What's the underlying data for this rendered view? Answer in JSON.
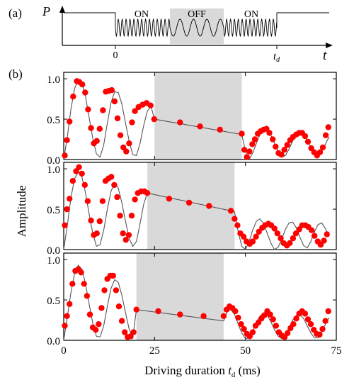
{
  "panel_a": {
    "label": "(a)",
    "y_symbol": "P",
    "x_symbol": "t",
    "on_label_1": "ON",
    "off_label": "OFF",
    "on_label_2": "ON",
    "tick_zero": "0",
    "tick_td": "t",
    "tick_td_sub": "d",
    "shade_color": "#d9d9d9"
  },
  "panel_b": {
    "label": "(b)",
    "ylabel": "Amplitude",
    "xlabel_main": "Driving duration ",
    "xlabel_var": "t",
    "xlabel_sub": "d",
    "xlabel_unit": " (ms)",
    "xticks": [
      "0",
      "25",
      "50",
      "75"
    ],
    "yticks": [
      "0.0",
      "0.5",
      "1.0"
    ],
    "marker_color": "#ff0000",
    "fit_color": "#555555",
    "shade_color": "#d9d9d9"
  },
  "chart_data": [
    {
      "type": "scatter",
      "subplot": 1,
      "xlim": [
        0,
        75
      ],
      "ylim": [
        0,
        1.08
      ],
      "off_interval": [
        25,
        49
      ],
      "x": [
        0.3,
        0.9,
        1.6,
        2.6,
        3.6,
        4.3,
        5.1,
        5.9,
        6.7,
        7.5,
        8.3,
        9.1,
        9.9,
        10.8,
        11.6,
        12.4,
        13.2,
        14.0,
        14.8,
        15.6,
        16.4,
        17.2,
        18.0,
        18.8,
        19.6,
        20.6,
        21.7,
        22.8,
        23.9,
        24.9,
        32.0,
        37.5,
        43.0,
        49.0,
        49.7,
        50.4,
        51.1,
        51.9,
        52.6,
        53.4,
        54.2,
        55.0,
        55.8,
        56.6,
        57.5,
        58.3,
        59.1,
        59.9,
        60.7,
        61.5,
        62.3,
        63.1,
        64.0,
        64.8,
        65.6,
        66.4,
        67.2,
        68.1,
        68.9,
        69.7,
        70.5,
        71.3,
        72.1,
        72.8
      ],
      "y": [
        0.05,
        0.24,
        0.47,
        0.78,
        0.97,
        0.96,
        0.93,
        0.83,
        0.62,
        0.39,
        0.2,
        0.23,
        0.38,
        0.61,
        0.84,
        0.85,
        0.86,
        0.72,
        0.51,
        0.3,
        0.15,
        0.1,
        0.2,
        0.46,
        0.6,
        0.65,
        0.68,
        0.7,
        0.67,
        0.5,
        0.46,
        0.41,
        0.37,
        0.32,
        0.12,
        0.03,
        0.1,
        0.19,
        0.25,
        0.32,
        0.35,
        0.37,
        0.38,
        0.33,
        0.25,
        0.16,
        0.08,
        0.06,
        0.12,
        0.18,
        0.24,
        0.28,
        0.31,
        0.33,
        0.33,
        0.29,
        0.22,
        0.14,
        0.09,
        0.05,
        0.09,
        0.15,
        0.3,
        0.4
      ],
      "fit_x": [
        0,
        1,
        2,
        3,
        4,
        5,
        6,
        7,
        8,
        9,
        10,
        11,
        12,
        13,
        14,
        15,
        16,
        17,
        18,
        19,
        20,
        21,
        22,
        23,
        24,
        25,
        49,
        50,
        51,
        52,
        53,
        54,
        55,
        56,
        57,
        58,
        59,
        60,
        61,
        62,
        63,
        64,
        65,
        66,
        67,
        68,
        69,
        70,
        71,
        72,
        73
      ],
      "fit_y": [
        0.0,
        0.28,
        0.63,
        0.88,
        0.99,
        0.95,
        0.78,
        0.52,
        0.26,
        0.07,
        0.03,
        0.18,
        0.45,
        0.7,
        0.84,
        0.83,
        0.69,
        0.45,
        0.23,
        0.06,
        0.05,
        0.2,
        0.42,
        0.6,
        0.66,
        0.5,
        0.31,
        0.1,
        0.0,
        0.08,
        0.2,
        0.31,
        0.37,
        0.36,
        0.3,
        0.2,
        0.1,
        0.03,
        0.05,
        0.13,
        0.23,
        0.31,
        0.34,
        0.32,
        0.25,
        0.15,
        0.07,
        0.03,
        0.09,
        0.19,
        0.28
      ]
    },
    {
      "type": "scatter",
      "subplot": 2,
      "xlim": [
        0,
        75
      ],
      "ylim": [
        0,
        1.08
      ],
      "off_interval": [
        23,
        47
      ],
      "x": [
        0.3,
        0.9,
        1.6,
        2.5,
        3.4,
        4.2,
        5.0,
        5.8,
        6.6,
        7.5,
        8.3,
        9.1,
        9.9,
        10.7,
        11.5,
        12.3,
        13.1,
        13.9,
        14.7,
        15.5,
        16.3,
        17.1,
        17.9,
        18.7,
        19.6,
        20.4,
        21.3,
        22.2,
        23.0,
        29.0,
        34.5,
        40.0,
        46.0,
        47.0,
        47.8,
        48.6,
        49.5,
        50.3,
        51.2,
        52.0,
        52.9,
        53.7,
        54.6,
        55.4,
        56.3,
        57.1,
        58.0,
        58.8,
        59.7,
        60.5,
        61.4,
        62.2,
        63.1,
        63.9,
        64.8,
        65.6,
        66.5,
        67.3,
        68.2,
        69.0,
        69.9,
        70.7,
        71.6,
        72.4
      ],
      "y": [
        0.3,
        0.5,
        0.63,
        0.85,
        0.97,
        1.02,
        0.94,
        0.8,
        0.6,
        0.36,
        0.18,
        0.2,
        0.35,
        0.6,
        0.85,
        0.88,
        0.9,
        0.8,
        0.65,
        0.42,
        0.2,
        0.12,
        0.18,
        0.42,
        0.62,
        0.7,
        0.72,
        0.72,
        0.7,
        0.63,
        0.58,
        0.54,
        0.48,
        0.38,
        0.3,
        0.2,
        0.16,
        0.1,
        0.07,
        0.1,
        0.16,
        0.22,
        0.27,
        0.3,
        0.32,
        0.3,
        0.26,
        0.2,
        0.14,
        0.08,
        0.05,
        0.08,
        0.14,
        0.2,
        0.25,
        0.3,
        0.3,
        0.28,
        0.24,
        0.17,
        0.1,
        0.06,
        0.11,
        0.19
      ],
      "fit_x": [
        0,
        1,
        2,
        3,
        4,
        5,
        6,
        7,
        8,
        9,
        10,
        11,
        12,
        13,
        14,
        15,
        16,
        17,
        18,
        19,
        20,
        21,
        22,
        23,
        47,
        48,
        49,
        50,
        51,
        52,
        53,
        54,
        55,
        56,
        57,
        58,
        59,
        60,
        61,
        62,
        63,
        64,
        65,
        66,
        67,
        68,
        69,
        70,
        71,
        72,
        73
      ],
      "fit_y": [
        0.0,
        0.3,
        0.65,
        0.88,
        0.96,
        0.9,
        0.7,
        0.44,
        0.2,
        0.04,
        0.06,
        0.24,
        0.5,
        0.72,
        0.82,
        0.76,
        0.58,
        0.35,
        0.14,
        0.04,
        0.1,
        0.32,
        0.56,
        0.7,
        0.47,
        0.22,
        0.04,
        0.0,
        0.1,
        0.24,
        0.35,
        0.38,
        0.32,
        0.2,
        0.08,
        0.0,
        0.03,
        0.13,
        0.25,
        0.33,
        0.34,
        0.27,
        0.15,
        0.05,
        0.02,
        0.1,
        0.22,
        0.31,
        0.33,
        0.26,
        0.16
      ]
    },
    {
      "type": "scatter",
      "subplot": 3,
      "xlim": [
        0,
        75
      ],
      "ylim": [
        0,
        1.08
      ],
      "off_interval": [
        20,
        44
      ],
      "x": [
        0.3,
        0.9,
        1.6,
        2.4,
        3.2,
        4.0,
        4.8,
        5.6,
        6.4,
        7.2,
        8.0,
        8.8,
        9.6,
        10.4,
        11.2,
        12.0,
        12.8,
        13.6,
        14.4,
        15.2,
        16.0,
        16.8,
        17.6,
        18.4,
        19.2,
        20.0,
        26.0,
        32.0,
        38.5,
        44.0,
        44.8,
        45.6,
        46.4,
        47.2,
        48.0,
        48.8,
        49.6,
        50.4,
        51.2,
        52.0,
        52.8,
        53.6,
        54.4,
        55.2,
        56.0,
        56.8,
        57.6,
        58.4,
        59.2,
        60.0,
        60.8,
        61.6,
        62.4,
        63.2,
        64.0,
        64.8,
        65.6,
        66.4,
        67.2,
        68.0,
        68.8,
        69.6,
        70.4,
        71.2,
        72.0,
        72.8
      ],
      "y": [
        0.18,
        0.3,
        0.45,
        0.7,
        0.86,
        0.88,
        0.84,
        0.7,
        0.55,
        0.32,
        0.16,
        0.13,
        0.2,
        0.4,
        0.62,
        0.76,
        0.8,
        0.8,
        0.62,
        0.42,
        0.24,
        0.1,
        0.04,
        0.05,
        0.1,
        0.38,
        0.36,
        0.32,
        0.3,
        0.3,
        0.38,
        0.42,
        0.4,
        0.36,
        0.28,
        0.2,
        0.14,
        0.08,
        0.05,
        0.1,
        0.18,
        0.22,
        0.27,
        0.31,
        0.36,
        0.32,
        0.26,
        0.18,
        0.1,
        0.06,
        0.04,
        0.09,
        0.15,
        0.2,
        0.27,
        0.33,
        0.36,
        0.33,
        0.26,
        0.2,
        0.13,
        0.08,
        0.07,
        0.14,
        0.24,
        0.36
      ],
      "fit_x": [
        0,
        1,
        2,
        3,
        4,
        5,
        6,
        7,
        8,
        9,
        10,
        11,
        12,
        13,
        14,
        15,
        16,
        17,
        18,
        19,
        20,
        44,
        45,
        46,
        47,
        48,
        49,
        50,
        51,
        52,
        53,
        54,
        55,
        56,
        57,
        58,
        59,
        60,
        61,
        62,
        63,
        64,
        65,
        66,
        67,
        68,
        69,
        70,
        71,
        72,
        73
      ],
      "fit_y": [
        0.0,
        0.29,
        0.6,
        0.83,
        0.93,
        0.88,
        0.7,
        0.45,
        0.21,
        0.05,
        0.04,
        0.18,
        0.42,
        0.64,
        0.75,
        0.72,
        0.56,
        0.34,
        0.14,
        0.03,
        0.38,
        0.24,
        0.36,
        0.38,
        0.32,
        0.2,
        0.09,
        0.02,
        0.03,
        0.11,
        0.22,
        0.3,
        0.34,
        0.31,
        0.23,
        0.13,
        0.05,
        0.02,
        0.07,
        0.16,
        0.25,
        0.31,
        0.32,
        0.27,
        0.18,
        0.09,
        0.03,
        0.03,
        0.1,
        0.2,
        0.28
      ]
    }
  ]
}
